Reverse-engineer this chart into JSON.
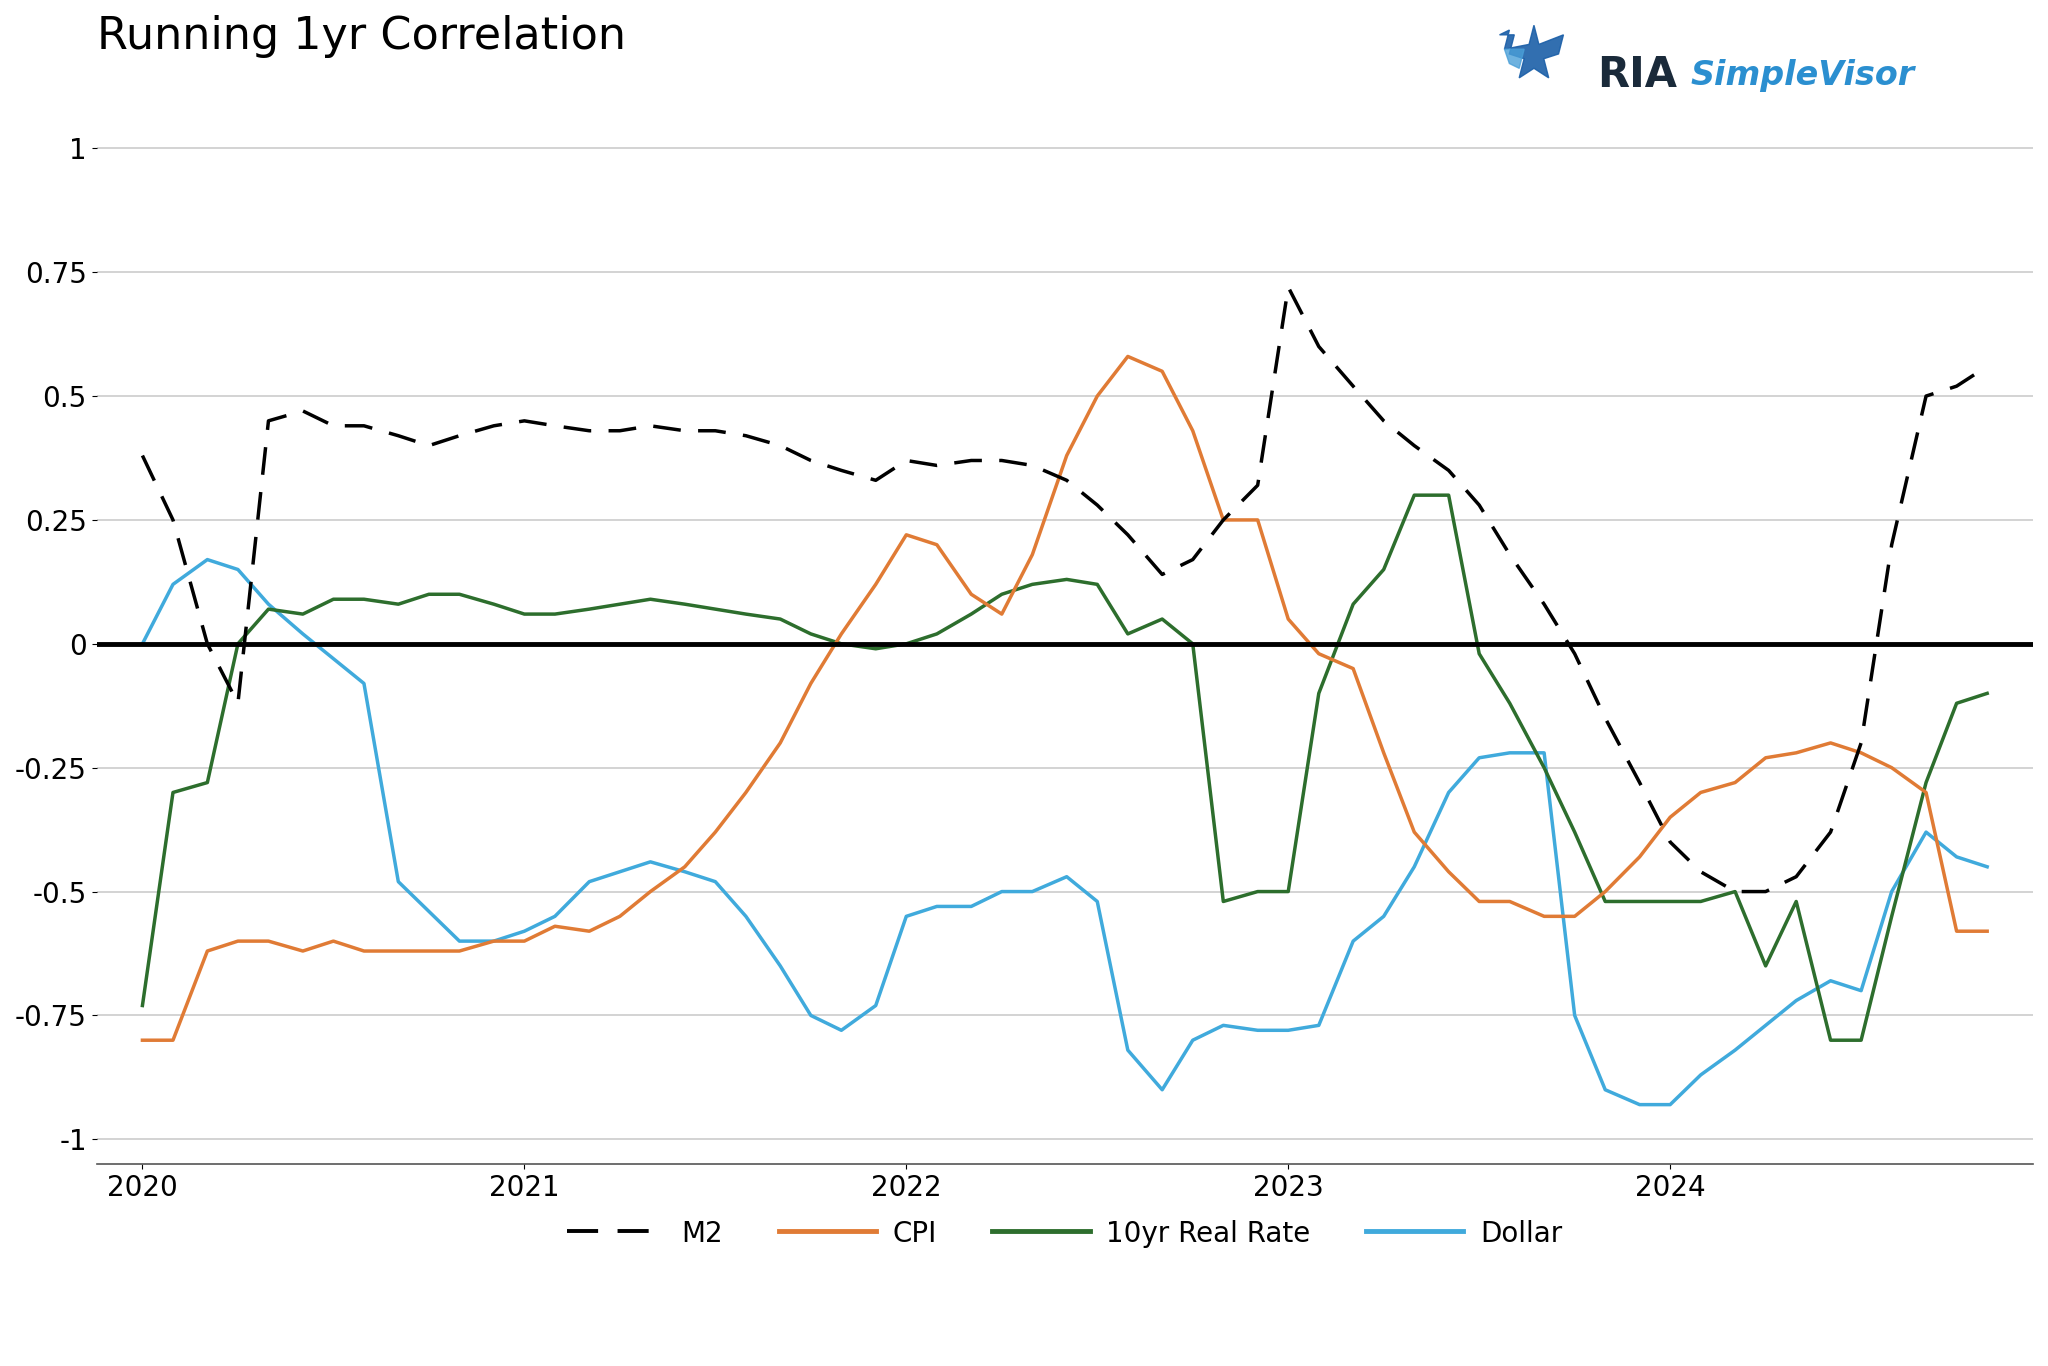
{
  "title": "Running 1yr Correlation",
  "title_fontsize": 32,
  "background_color": "#ffffff",
  "ylim": [
    -1.05,
    1.15
  ],
  "yticks": [
    -1,
    -0.75,
    -0.5,
    -0.25,
    0,
    0.25,
    0.5,
    0.75,
    1
  ],
  "grid_color": "#cccccc",
  "zero_line_color": "#000000",
  "series": {
    "M2": {
      "color": "#000000",
      "linestyle": "dashed",
      "linewidth": 2.5,
      "label": "M2"
    },
    "CPI": {
      "color": "#E07B35",
      "linestyle": "solid",
      "linewidth": 2.5,
      "label": "CPI"
    },
    "RealRate": {
      "color": "#2D6E2D",
      "linestyle": "solid",
      "linewidth": 2.5,
      "label": "10yr Real Rate"
    },
    "Dollar": {
      "color": "#40AADC",
      "linestyle": "solid",
      "linewidth": 2.5,
      "label": "Dollar"
    }
  },
  "x_labels": [
    2020,
    2021,
    2022,
    2023,
    2024
  ],
  "xlim": [
    2019.88,
    2024.95
  ],
  "x_M2": [
    2020.0,
    2020.08,
    2020.17,
    2020.25,
    2020.33,
    2020.42,
    2020.5,
    2020.58,
    2020.67,
    2020.75,
    2020.83,
    2020.92,
    2021.0,
    2021.08,
    2021.17,
    2021.25,
    2021.33,
    2021.42,
    2021.5,
    2021.58,
    2021.67,
    2021.75,
    2021.83,
    2021.92,
    2022.0,
    2022.08,
    2022.17,
    2022.25,
    2022.33,
    2022.42,
    2022.5,
    2022.58,
    2022.67,
    2022.75,
    2022.83,
    2022.92,
    2023.0,
    2023.08,
    2023.17,
    2023.25,
    2023.33,
    2023.42,
    2023.5,
    2023.58,
    2023.67,
    2023.75,
    2023.83,
    2023.92,
    2024.0,
    2024.08,
    2024.17,
    2024.25,
    2024.33,
    2024.42,
    2024.5,
    2024.58,
    2024.67,
    2024.75,
    2024.83
  ],
  "y_M2": [
    0.38,
    0.25,
    0.0,
    -0.12,
    0.45,
    0.47,
    0.44,
    0.44,
    0.42,
    0.4,
    0.42,
    0.44,
    0.45,
    0.44,
    0.43,
    0.43,
    0.44,
    0.43,
    0.43,
    0.42,
    0.4,
    0.37,
    0.35,
    0.33,
    0.37,
    0.36,
    0.37,
    0.37,
    0.36,
    0.33,
    0.28,
    0.22,
    0.14,
    0.17,
    0.25,
    0.32,
    0.72,
    0.6,
    0.52,
    0.45,
    0.4,
    0.35,
    0.28,
    0.18,
    0.08,
    -0.02,
    -0.15,
    -0.28,
    -0.4,
    -0.46,
    -0.5,
    -0.5,
    -0.47,
    -0.38,
    -0.2,
    0.2,
    0.5,
    0.52,
    0.56
  ],
  "x_CPI": [
    2020.0,
    2020.08,
    2020.17,
    2020.25,
    2020.33,
    2020.42,
    2020.5,
    2020.58,
    2020.67,
    2020.75,
    2020.83,
    2020.92,
    2021.0,
    2021.08,
    2021.17,
    2021.25,
    2021.33,
    2021.42,
    2021.5,
    2021.58,
    2021.67,
    2021.75,
    2021.83,
    2021.92,
    2022.0,
    2022.08,
    2022.17,
    2022.25,
    2022.33,
    2022.42,
    2022.5,
    2022.58,
    2022.67,
    2022.75,
    2022.83,
    2022.92,
    2023.0,
    2023.08,
    2023.17,
    2023.25,
    2023.33,
    2023.42,
    2023.5,
    2023.58,
    2023.67,
    2023.75,
    2023.83,
    2023.92,
    2024.0,
    2024.08,
    2024.17,
    2024.25,
    2024.33,
    2024.42,
    2024.5,
    2024.58,
    2024.67,
    2024.75,
    2024.83
  ],
  "y_CPI": [
    -0.8,
    -0.8,
    -0.62,
    -0.6,
    -0.6,
    -0.62,
    -0.6,
    -0.62,
    -0.62,
    -0.62,
    -0.62,
    -0.6,
    -0.6,
    -0.57,
    -0.58,
    -0.55,
    -0.5,
    -0.45,
    -0.38,
    -0.3,
    -0.2,
    -0.08,
    0.02,
    0.12,
    0.22,
    0.2,
    0.1,
    0.06,
    0.18,
    0.38,
    0.5,
    0.58,
    0.55,
    0.43,
    0.25,
    0.25,
    0.05,
    -0.02,
    -0.05,
    -0.22,
    -0.38,
    -0.46,
    -0.52,
    -0.52,
    -0.55,
    -0.55,
    -0.5,
    -0.43,
    -0.35,
    -0.3,
    -0.28,
    -0.23,
    -0.22,
    -0.2,
    -0.22,
    -0.25,
    -0.3,
    -0.58,
    -0.58
  ],
  "x_RealRate": [
    2020.0,
    2020.08,
    2020.17,
    2020.25,
    2020.33,
    2020.42,
    2020.5,
    2020.58,
    2020.67,
    2020.75,
    2020.83,
    2020.92,
    2021.0,
    2021.08,
    2021.17,
    2021.25,
    2021.33,
    2021.42,
    2021.5,
    2021.58,
    2021.67,
    2021.75,
    2021.83,
    2021.92,
    2022.0,
    2022.08,
    2022.17,
    2022.25,
    2022.33,
    2022.42,
    2022.5,
    2022.58,
    2022.67,
    2022.75,
    2022.83,
    2022.92,
    2023.0,
    2023.08,
    2023.17,
    2023.25,
    2023.33,
    2023.42,
    2023.5,
    2023.58,
    2023.67,
    2023.75,
    2023.83,
    2023.92,
    2024.0,
    2024.08,
    2024.17,
    2024.25,
    2024.33,
    2024.42,
    2024.5,
    2024.58,
    2024.67,
    2024.75,
    2024.83
  ],
  "y_RealRate": [
    -0.73,
    -0.3,
    -0.28,
    0.0,
    0.07,
    0.06,
    0.09,
    0.09,
    0.08,
    0.1,
    0.1,
    0.08,
    0.06,
    0.06,
    0.07,
    0.08,
    0.09,
    0.08,
    0.07,
    0.06,
    0.05,
    0.02,
    0.0,
    -0.01,
    0.0,
    0.02,
    0.06,
    0.1,
    0.12,
    0.13,
    0.12,
    0.02,
    0.05,
    0.0,
    -0.52,
    -0.5,
    -0.5,
    -0.1,
    0.08,
    0.15,
    0.3,
    0.3,
    -0.02,
    -0.12,
    -0.25,
    -0.38,
    -0.52,
    -0.52,
    -0.52,
    -0.52,
    -0.5,
    -0.65,
    -0.52,
    -0.8,
    -0.8,
    -0.55,
    -0.28,
    -0.12,
    -0.1
  ],
  "x_Dollar": [
    2020.0,
    2020.08,
    2020.17,
    2020.25,
    2020.33,
    2020.42,
    2020.5,
    2020.58,
    2020.67,
    2020.75,
    2020.83,
    2020.92,
    2021.0,
    2021.08,
    2021.17,
    2021.25,
    2021.33,
    2021.42,
    2021.5,
    2021.58,
    2021.67,
    2021.75,
    2021.83,
    2021.92,
    2022.0,
    2022.08,
    2022.17,
    2022.25,
    2022.33,
    2022.42,
    2022.5,
    2022.58,
    2022.67,
    2022.75,
    2022.83,
    2022.92,
    2023.0,
    2023.08,
    2023.17,
    2023.25,
    2023.33,
    2023.42,
    2023.5,
    2023.58,
    2023.67,
    2023.75,
    2023.83,
    2023.92,
    2024.0,
    2024.08,
    2024.17,
    2024.25,
    2024.33,
    2024.42,
    2024.5,
    2024.58,
    2024.67,
    2024.75,
    2024.83
  ],
  "y_Dollar": [
    0.0,
    0.12,
    0.17,
    0.15,
    0.08,
    0.02,
    -0.03,
    -0.08,
    -0.48,
    -0.54,
    -0.6,
    -0.6,
    -0.58,
    -0.55,
    -0.48,
    -0.46,
    -0.44,
    -0.46,
    -0.48,
    -0.55,
    -0.65,
    -0.75,
    -0.78,
    -0.73,
    -0.55,
    -0.53,
    -0.53,
    -0.5,
    -0.5,
    -0.47,
    -0.52,
    -0.82,
    -0.9,
    -0.8,
    -0.77,
    -0.78,
    -0.78,
    -0.77,
    -0.6,
    -0.55,
    -0.45,
    -0.3,
    -0.23,
    -0.22,
    -0.22,
    -0.75,
    -0.9,
    -0.93,
    -0.93,
    -0.87,
    -0.82,
    -0.77,
    -0.72,
    -0.68,
    -0.7,
    -0.5,
    -0.38,
    -0.43,
    -0.45
  ]
}
